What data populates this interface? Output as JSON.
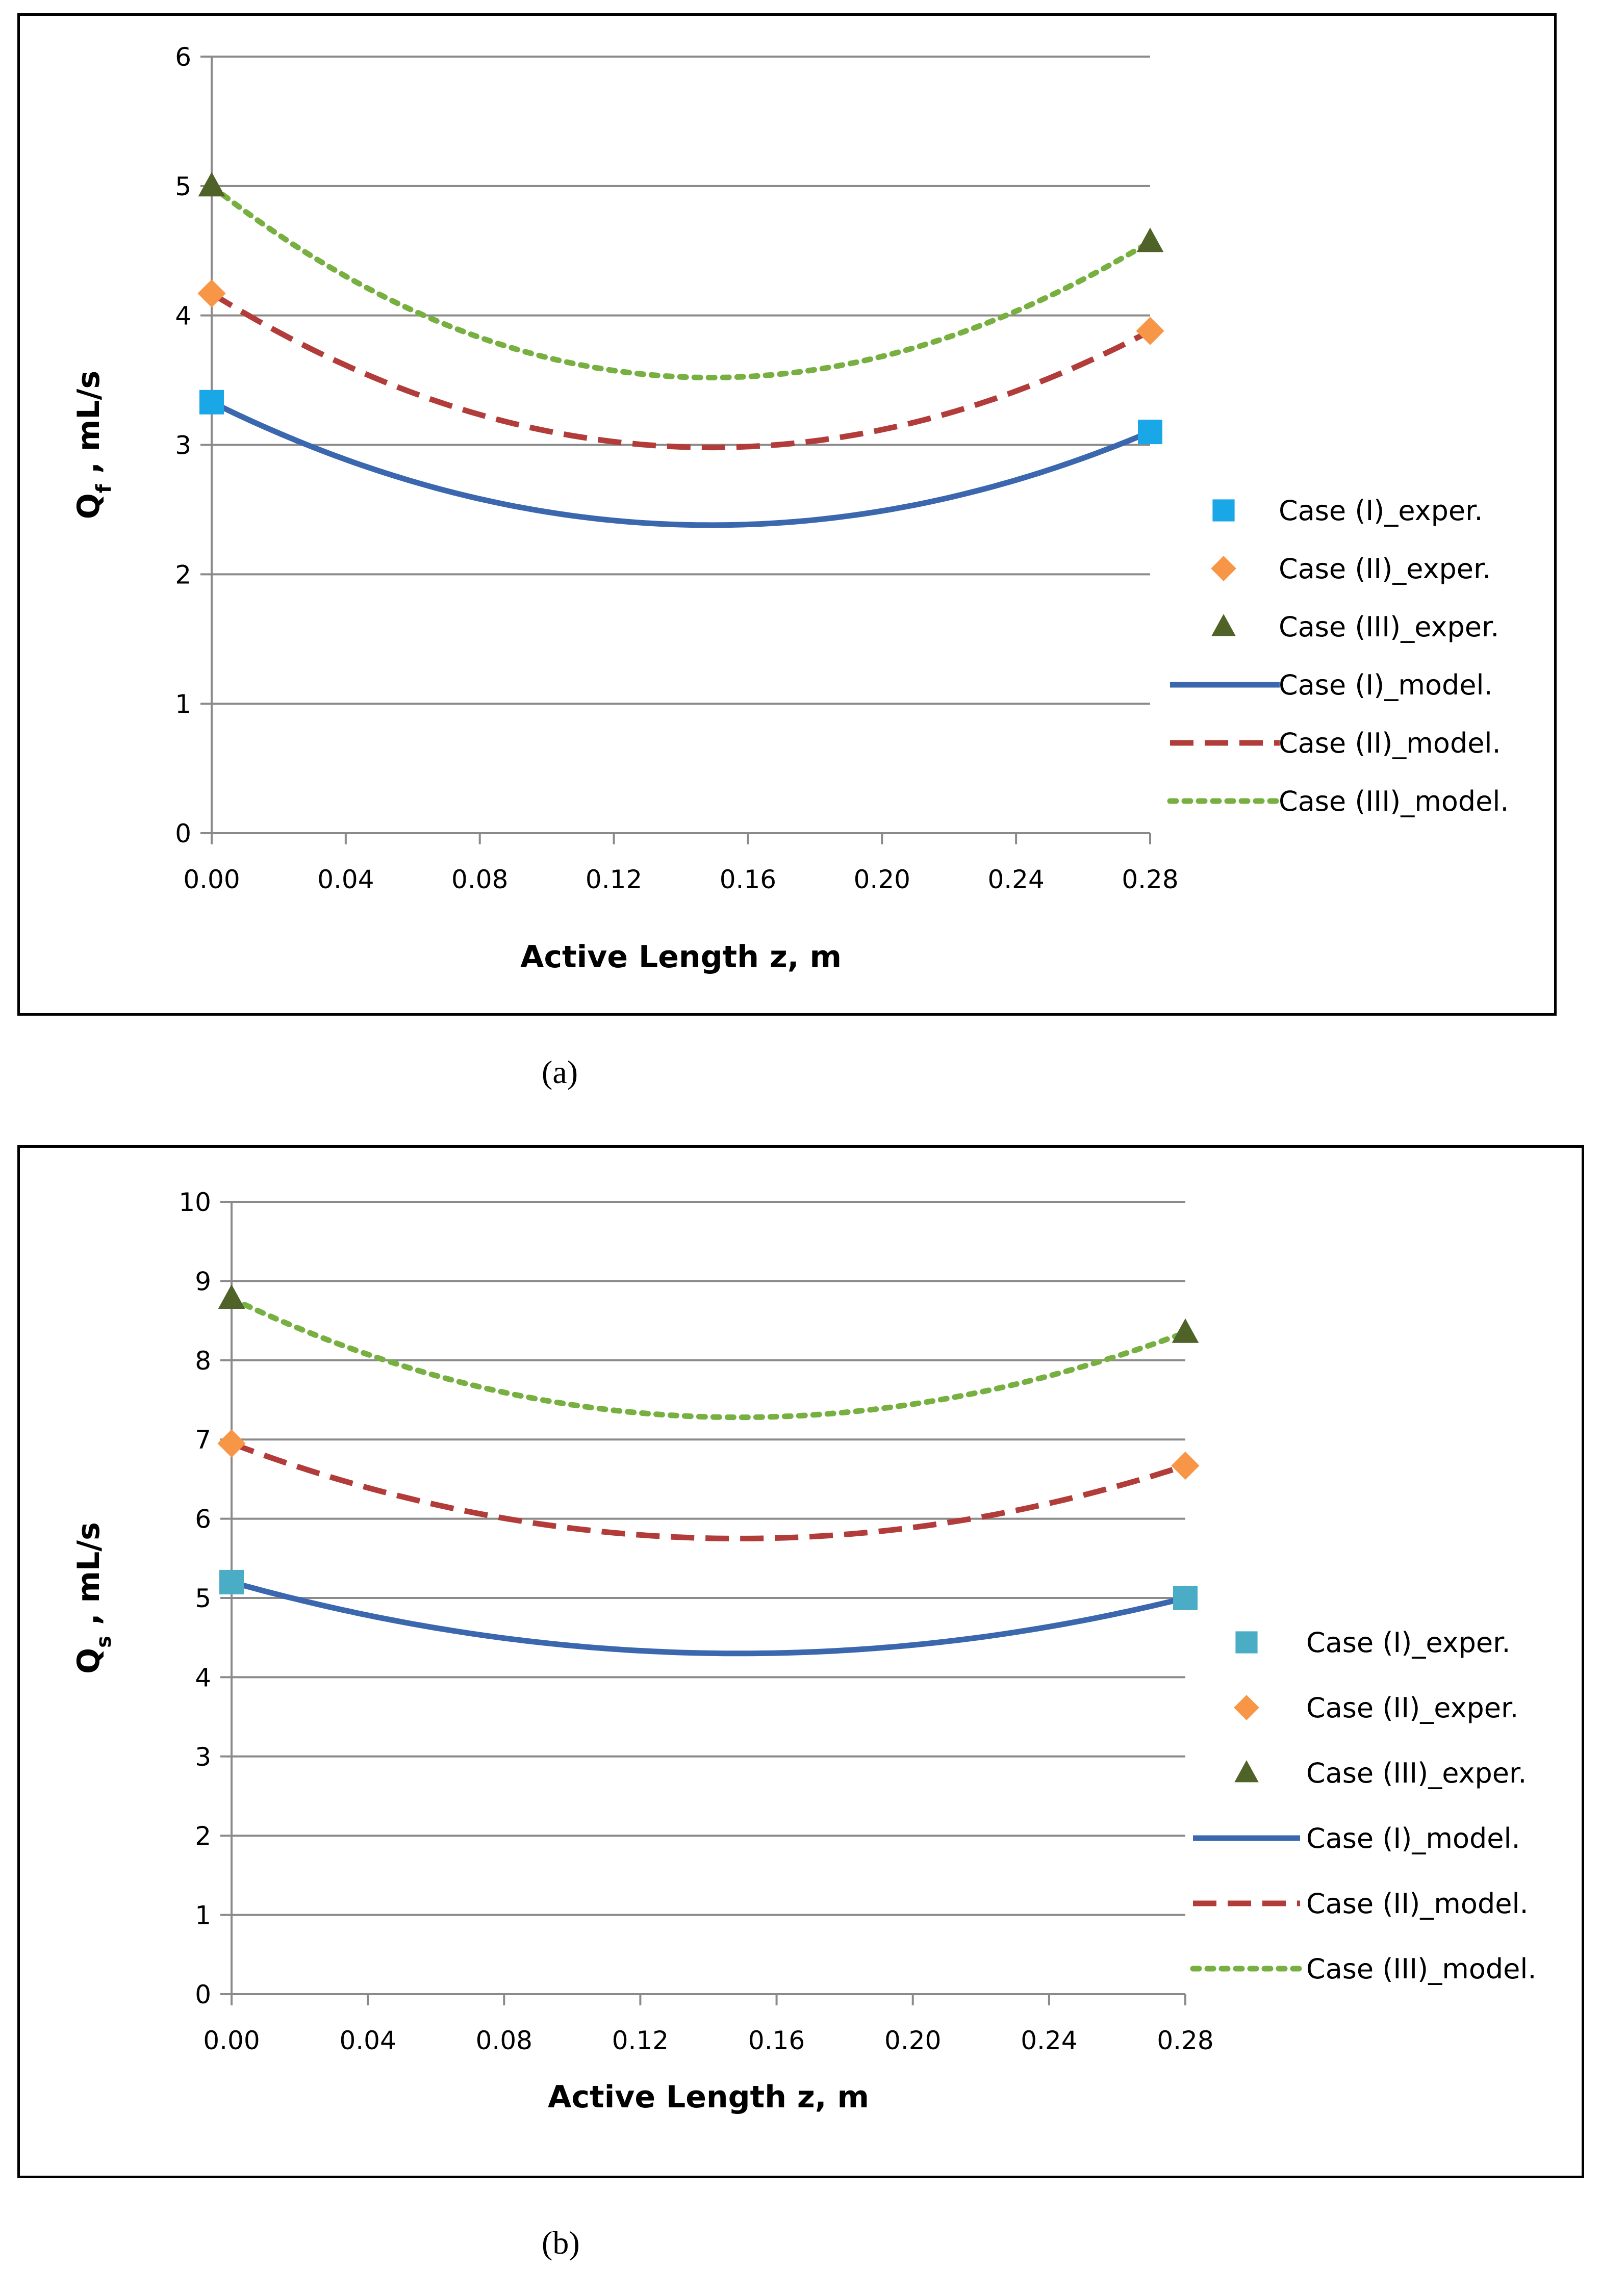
{
  "chart_data": [
    {
      "type": "line",
      "panel_label": "(a)",
      "xlabel": "Active Length z, m",
      "ylabel_main": "Q",
      "ylabel_sub": "f",
      "ylabel_rest": " , mL/s",
      "xlim": [
        0,
        0.28
      ],
      "ylim": [
        0,
        6
      ],
      "xticks": [
        0.0,
        0.04,
        0.08,
        0.12,
        0.16,
        0.2,
        0.24,
        0.28
      ],
      "xtick_labels": [
        "0.00",
        "0.04",
        "0.08",
        "0.12",
        "0.16",
        "0.20",
        "0.24",
        "0.28"
      ],
      "yticks": [
        0,
        1,
        2,
        3,
        4,
        5,
        6
      ],
      "ytick_labels": [
        "0",
        "1",
        "2",
        "3",
        "4",
        "5",
        "6"
      ],
      "grid": true,
      "legend_position": "right",
      "series": [
        {
          "name": "Case (I)_exper.",
          "kind": "marker",
          "marker": "square",
          "color": "#1aa7e8",
          "x": [
            0.0,
            0.28
          ],
          "y": [
            3.33,
            3.1
          ]
        },
        {
          "name": "Case (II)_exper.",
          "kind": "marker",
          "marker": "diamond",
          "color": "#f79646",
          "x": [
            0.0,
            0.28
          ],
          "y": [
            4.17,
            3.88
          ]
        },
        {
          "name": "Case (III)_exper.",
          "kind": "marker",
          "marker": "triangle",
          "color": "#4f6228",
          "x": [
            0.0,
            0.28
          ],
          "y": [
            5.0,
            4.57
          ]
        },
        {
          "name": "Case (I)_model.",
          "kind": "line",
          "dash": "solid",
          "color": "#3a67ad",
          "x": [
            0.0,
            0.28
          ],
          "y": [
            3.33,
            3.1
          ],
          "min": [
            0.149,
            2.38
          ]
        },
        {
          "name": "Case (II)_model.",
          "kind": "line",
          "dash": "dashed",
          "color": "#b23c3a",
          "x": [
            0.0,
            0.28
          ],
          "y": [
            4.17,
            3.88
          ],
          "min": [
            0.149,
            2.98
          ]
        },
        {
          "name": "Case (III)_model.",
          "kind": "line",
          "dash": "dotted",
          "color": "#77b041",
          "x": [
            0.0,
            0.28
          ],
          "y": [
            5.0,
            4.57
          ],
          "min": [
            0.149,
            3.52
          ]
        }
      ]
    },
    {
      "type": "line",
      "panel_label": "(b)",
      "xlabel": "Active Length z, m",
      "ylabel_main": "Q",
      "ylabel_sub": "s",
      "ylabel_rest": " , mL/s",
      "xlim": [
        0,
        0.28
      ],
      "ylim": [
        0,
        10
      ],
      "xticks": [
        0.0,
        0.04,
        0.08,
        0.12,
        0.16,
        0.2,
        0.24,
        0.28
      ],
      "xtick_labels": [
        "0.00",
        "0.04",
        "0.08",
        "0.12",
        "0.16",
        "0.20",
        "0.24",
        "0.28"
      ],
      "yticks": [
        0,
        1,
        2,
        3,
        4,
        5,
        6,
        7,
        8,
        9,
        10
      ],
      "ytick_labels": [
        "0",
        "1",
        "2",
        "3",
        "4",
        "5",
        "6",
        "7",
        "8",
        "9",
        "10"
      ],
      "grid": true,
      "legend_position": "right",
      "series": [
        {
          "name": "Case (I)_exper.",
          "kind": "marker",
          "marker": "square",
          "color": "#4bacc6",
          "x": [
            0.0,
            0.28
          ],
          "y": [
            5.2,
            5.0
          ]
        },
        {
          "name": "Case (II)_exper.",
          "kind": "marker",
          "marker": "diamond",
          "color": "#f79646",
          "x": [
            0.0,
            0.28
          ],
          "y": [
            6.95,
            6.67
          ]
        },
        {
          "name": "Case (III)_exper.",
          "kind": "marker",
          "marker": "triangle",
          "color": "#4f6228",
          "x": [
            0.0,
            0.28
          ],
          "y": [
            8.78,
            8.35
          ]
        },
        {
          "name": "Case (I)_model.",
          "kind": "line",
          "dash": "solid",
          "color": "#3a67ad",
          "x": [
            0.0,
            0.28
          ],
          "y": [
            5.2,
            5.0
          ],
          "min": [
            0.149,
            4.3
          ]
        },
        {
          "name": "Case (II)_model.",
          "kind": "line",
          "dash": "dashed",
          "color": "#b23c3a",
          "x": [
            0.0,
            0.28
          ],
          "y": [
            6.95,
            6.67
          ],
          "min": [
            0.149,
            5.75
          ]
        },
        {
          "name": "Case (III)_model.",
          "kind": "line",
          "dash": "dotted",
          "color": "#77b041",
          "x": [
            0.0,
            0.28
          ],
          "y": [
            8.78,
            8.35
          ],
          "min": [
            0.149,
            7.28
          ]
        }
      ]
    }
  ]
}
